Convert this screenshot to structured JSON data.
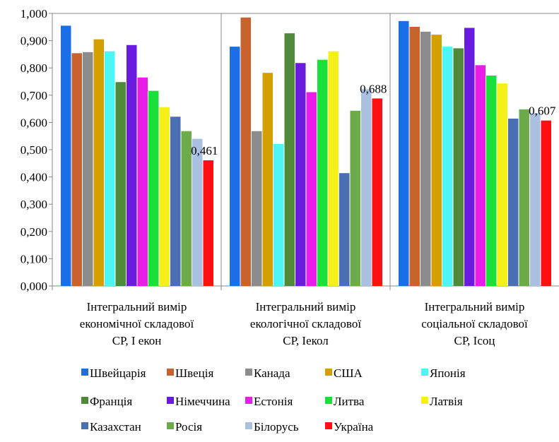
{
  "chart_data": {
    "type": "bar",
    "categories": [
      [
        "Інтегральний вимір",
        "економічної складової",
        "СР, І екон"
      ],
      [
        "Інтегральний вимір",
        "екологічної складової",
        "СР, Іекол"
      ],
      [
        "Інтегральний вимір",
        "соціальної складової",
        "СР, Ісоц"
      ]
    ],
    "series": [
      {
        "name": "Швейцарія",
        "color": "#1a6fe8",
        "values": [
          0.955,
          0.878,
          0.972
        ]
      },
      {
        "name": "Швеція",
        "color": "#c8632e",
        "values": [
          0.854,
          0.985,
          0.951
        ]
      },
      {
        "name": "Канада",
        "color": "#8c8c8c",
        "values": [
          0.858,
          0.568,
          0.933
        ]
      },
      {
        "name": "США",
        "color": "#d4a000",
        "values": [
          0.905,
          0.782,
          0.922
        ]
      },
      {
        "name": "Японія",
        "color": "#4ef5f5",
        "values": [
          0.861,
          0.521,
          0.878
        ]
      },
      {
        "name": "Франція",
        "color": "#4f8a3a",
        "values": [
          0.748,
          0.927,
          0.872
        ]
      },
      {
        "name": "Німеччина",
        "color": "#6a1be0",
        "values": [
          0.884,
          0.818,
          0.947
        ]
      },
      {
        "name": "Естонія",
        "color": "#ea1ce8",
        "values": [
          0.765,
          0.711,
          0.81
        ]
      },
      {
        "name": "Литва",
        "color": "#1ae03a",
        "values": [
          0.716,
          0.83,
          0.772
        ]
      },
      {
        "name": "Латвія",
        "color": "#f5f01a",
        "values": [
          0.656,
          0.861,
          0.743
        ]
      },
      {
        "name": "Казахстан",
        "color": "#4a6fb5",
        "values": [
          0.621,
          0.414,
          0.614
        ]
      },
      {
        "name": "Росія",
        "color": "#6cab4a",
        "values": [
          0.568,
          0.643,
          0.648
        ]
      },
      {
        "name": "Білорусь",
        "color": "#a9c0e0",
        "values": [
          0.54,
          0.722,
          0.634
        ]
      },
      {
        "name": "Україна",
        "color": "#ff1010",
        "values": [
          0.461,
          0.688,
          0.607
        ]
      }
    ],
    "data_labels": [
      {
        "series": "Україна",
        "category_index": 0,
        "text": "0,461"
      },
      {
        "series": "Україна",
        "category_index": 1,
        "text": "0,688"
      },
      {
        "series": "Україна",
        "category_index": 2,
        "text": "0,607"
      }
    ],
    "ylim": [
      0,
      1
    ],
    "y_ticks": [
      "0,000",
      "0,100",
      "0,200",
      "0,300",
      "0,400",
      "0,500",
      "0,600",
      "0,700",
      "0,800",
      "0,900",
      "1,000"
    ],
    "grid": false,
    "legend_position": "bottom",
    "title": "",
    "xlabel": "",
    "ylabel": ""
  }
}
